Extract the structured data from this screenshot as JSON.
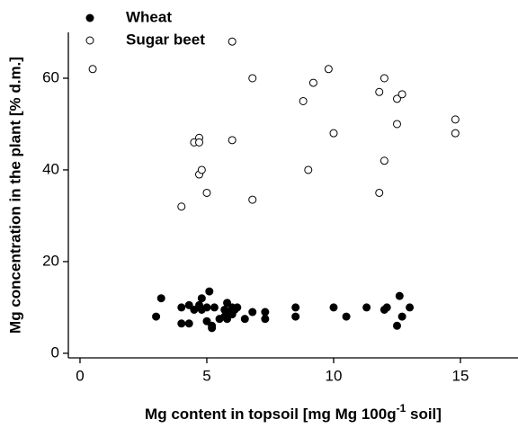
{
  "chart_data": {
    "type": "scatter",
    "xlabel": [
      "Mg content in topsoil [mg Mg 100g",
      "-1",
      " soil]"
    ],
    "ylabel": "Mg concentration in the plant [% d.m.]",
    "xlim": [
      -0.46,
      17.27
    ],
    "ylim": [
      -1,
      70
    ],
    "xticks": [
      0,
      5,
      10,
      15
    ],
    "yticks": [
      0,
      20,
      40,
      60
    ],
    "legend": "upper left",
    "series": [
      {
        "name": "Wheat",
        "color": "#000000",
        "filled": true,
        "x": [
          3,
          3.2,
          4,
          4,
          4.3,
          4.3,
          4.5,
          4.7,
          4.8,
          4.8,
          5,
          5,
          5.1,
          5.2,
          5.2,
          5.3,
          5.5,
          5.7,
          5.7,
          5.8,
          5.8,
          5.9,
          6,
          6,
          6.1,
          6.2,
          6.5,
          6.8,
          7.3,
          7.3,
          8.5,
          8.5,
          10,
          10.5,
          11.3,
          12,
          12.1,
          12.5,
          12.6,
          12.7,
          13
        ],
        "values": [
          8,
          12,
          6.5,
          10,
          10.5,
          6.5,
          9.5,
          10.5,
          9.5,
          12,
          10,
          7,
          13.5,
          6,
          5.5,
          10,
          7.5,
          8,
          9.5,
          11,
          7.5,
          9,
          10,
          8.5,
          9.5,
          10,
          7.5,
          9,
          9,
          7.5,
          10,
          8,
          10,
          8,
          10,
          9.5,
          10,
          6,
          12.5,
          8,
          10
        ]
      },
      {
        "name": "Sugar beet",
        "color": "#000000",
        "filled": false,
        "x": [
          0.5,
          4,
          4.5,
          4.7,
          4.7,
          4.7,
          4.8,
          5,
          6,
          6,
          6.8,
          6.8,
          8.8,
          9,
          9.2,
          9.8,
          10,
          11.8,
          11.8,
          12,
          12,
          12.5,
          12.5,
          12.7,
          14.8,
          14.8
        ],
        "values": [
          62,
          32,
          46,
          47,
          46,
          39,
          40,
          35,
          68,
          46.5,
          60,
          33.5,
          55,
          40,
          59,
          62,
          48,
          57,
          35,
          60,
          42,
          55.5,
          50,
          56.5,
          51,
          48
        ]
      }
    ]
  }
}
